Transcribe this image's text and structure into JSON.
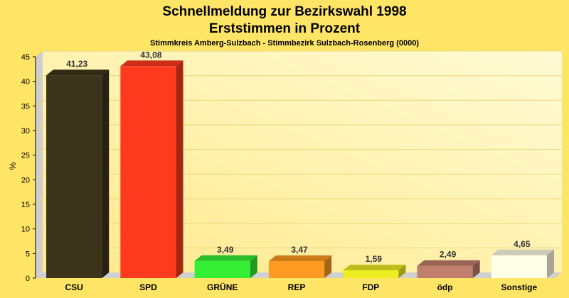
{
  "chart_data": {
    "type": "bar",
    "title": "Schnellmeldung zur Bezirkswahl 1998",
    "subtitle": "Erststimmen in Prozent",
    "caption": "Stimmkreis Amberg-Sulzbach - Stimmbezirk Sulzbach-Rosenberg (0000)",
    "ylabel": "%",
    "xlabel": "",
    "ylim": [
      0,
      45
    ],
    "yticks": [
      0,
      5,
      10,
      15,
      20,
      25,
      30,
      35,
      40,
      45
    ],
    "grid": true,
    "legend": "none",
    "categories": [
      "CSU",
      "SPD",
      "GRÜNE",
      "REP",
      "FDP",
      "ödp",
      "Sonstige"
    ],
    "values": [
      41.23,
      43.08,
      3.49,
      3.47,
      1.59,
      2.49,
      4.65
    ],
    "value_labels": [
      "41,23",
      "43,08",
      "3,49",
      "3,47",
      "1,59",
      "2,49",
      "4,65"
    ],
    "colors": [
      "#3B331A",
      "#FF3A1E",
      "#33EE33",
      "#FF9A22",
      "#EEEE22",
      "#C07E6C",
      "#FFFEE6"
    ]
  },
  "theme": {
    "background": "#FFE566",
    "plot_background": "#FFF6AA",
    "grid": "#E8D77A",
    "text": "#000000",
    "value_text": "#333333"
  }
}
